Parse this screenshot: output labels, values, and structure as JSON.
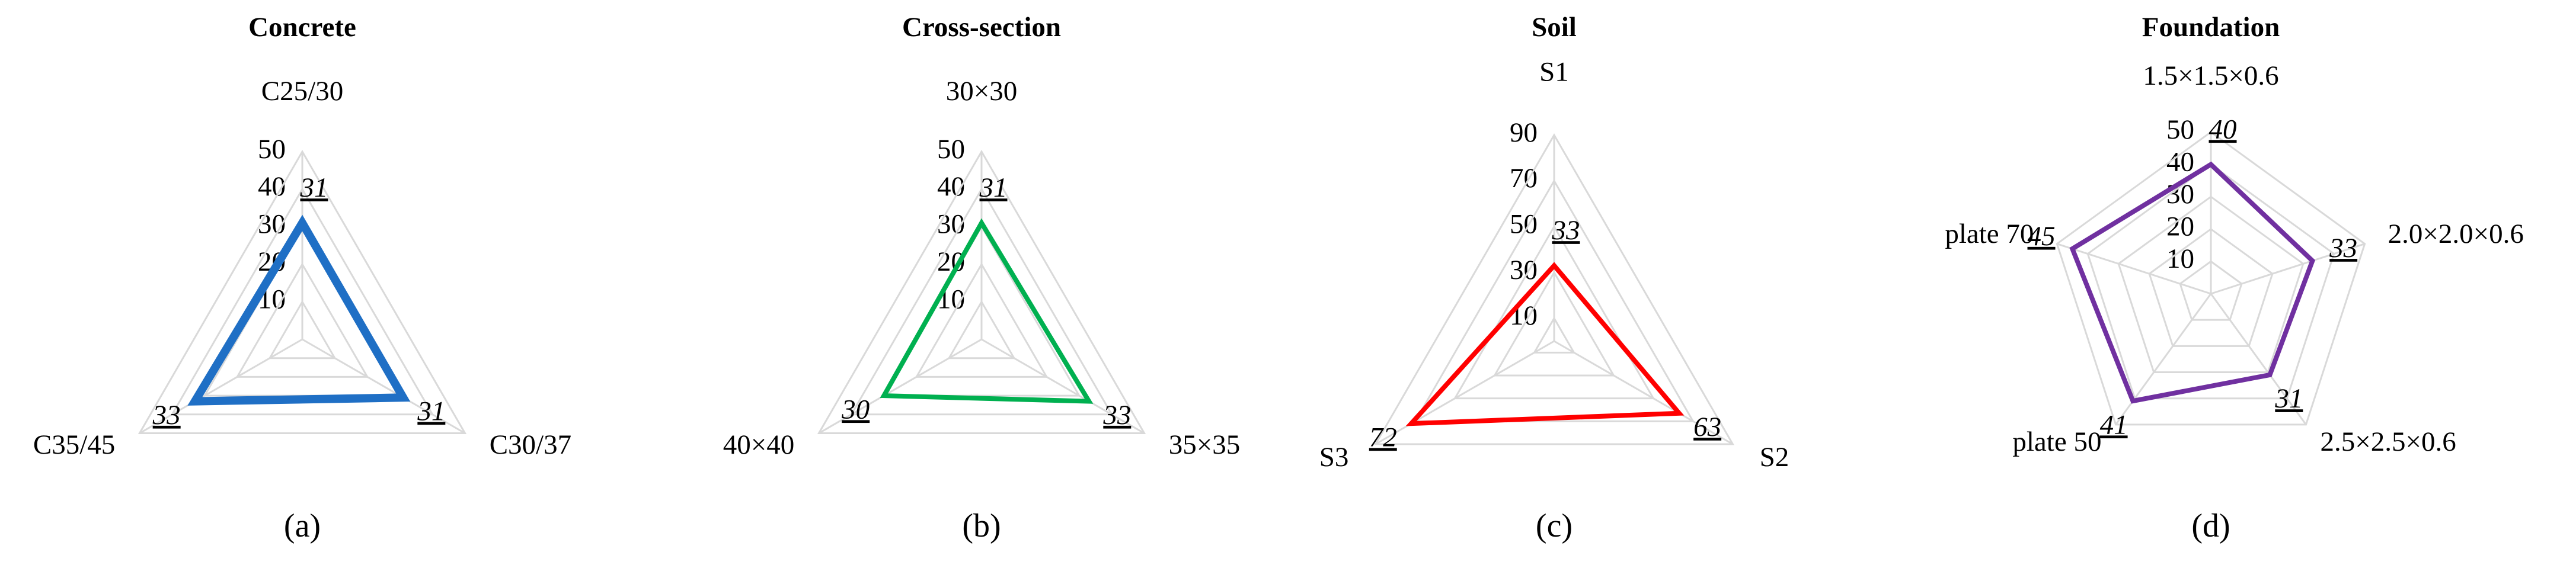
{
  "chart_data": [
    {
      "type": "radar",
      "title": "Concrete",
      "label": "(a)",
      "categories": [
        "C25/30",
        "C30/37",
        "C35/45"
      ],
      "values": [
        31,
        31,
        33
      ],
      "color": "#1f6fc5",
      "rlim": [
        0,
        50
      ],
      "rticks": [
        10,
        20,
        30,
        40,
        50
      ],
      "grid": true
    },
    {
      "type": "radar",
      "title": "Cross-section",
      "label": "(b)",
      "categories": [
        "30×30",
        "35×35",
        "40×40"
      ],
      "values": [
        31,
        33,
        30
      ],
      "color": "#00b050",
      "rlim": [
        0,
        50
      ],
      "rticks": [
        10,
        20,
        30,
        40,
        50
      ],
      "grid": true
    },
    {
      "type": "radar",
      "title": "Soil",
      "label": "(c)",
      "categories": [
        "S1",
        "S2",
        "S3"
      ],
      "values": [
        33,
        63,
        72
      ],
      "color": "#ff0000",
      "rlim": [
        0,
        90
      ],
      "rticks": [
        10,
        30,
        50,
        70,
        90
      ],
      "grid": true
    },
    {
      "type": "radar",
      "title": "Foundation",
      "label": "(d)",
      "categories": [
        "1.5×1.5×0.6",
        "2.0×2.0×0.6",
        "2.5×2.5×0.6",
        "plate 50",
        "plate 70"
      ],
      "values": [
        40,
        33,
        31,
        41,
        45
      ],
      "color": "#7030a0",
      "rlim": [
        0,
        50
      ],
      "rticks": [
        10,
        20,
        30,
        40,
        50
      ],
      "grid": true
    }
  ]
}
